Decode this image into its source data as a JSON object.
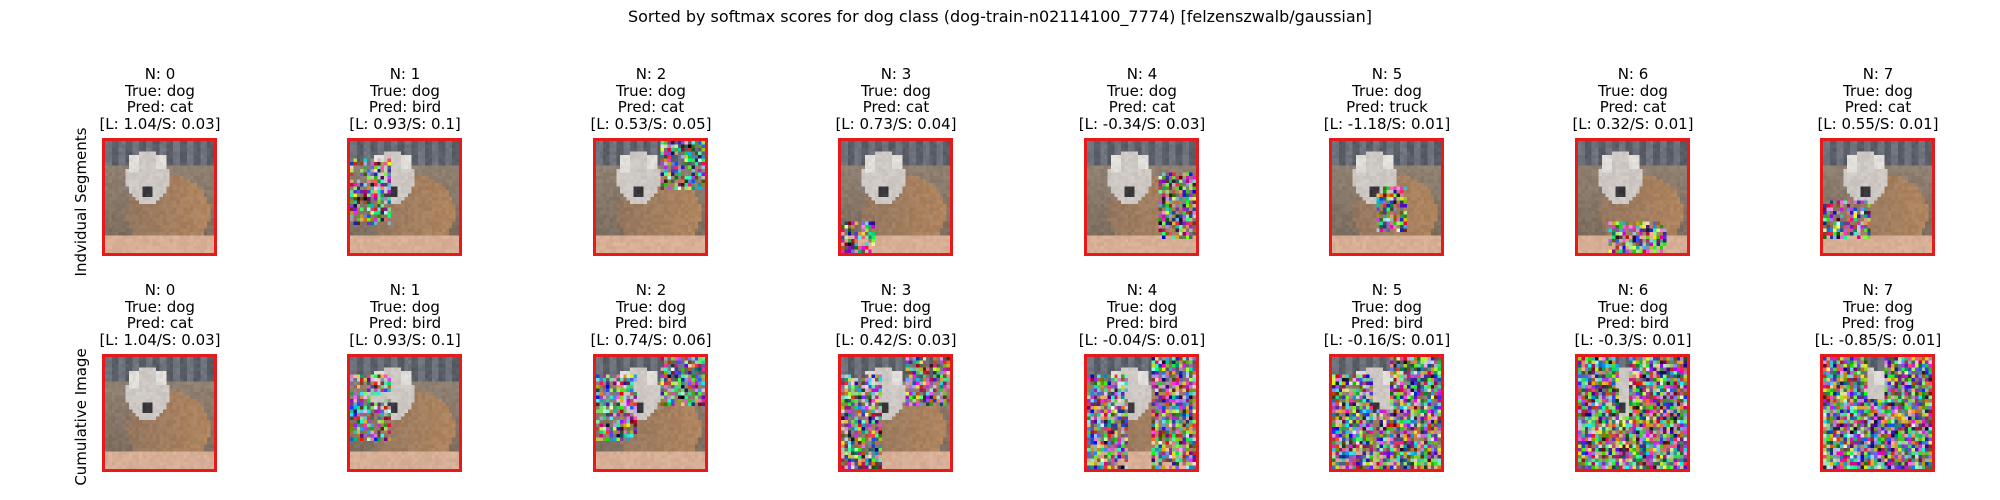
{
  "chart_data": {
    "type": "image-grid",
    "title": "Sorted by softmax scores for dog class (dog-train-n02114100_7774) [felzenszwalb/gaussian]",
    "rows": [
      {
        "label": "Indvidual Segments",
        "panels": [
          {
            "n": "N: 0",
            "true": "True: dog",
            "pred": "Pred: cat",
            "score": "[L: 1.04/S: 0.03]",
            "noise": 0.0,
            "region": "none"
          },
          {
            "n": "N: 1",
            "true": "True: dog",
            "pred": "Pred: bird",
            "score": "[L: 0.93/S: 0.1]",
            "noise": 0.35,
            "region": "left"
          },
          {
            "n": "N: 2",
            "true": "True: dog",
            "pred": "Pred: cat",
            "score": "[L: 0.53/S: 0.05]",
            "noise": 0.35,
            "region": "topright"
          },
          {
            "n": "N: 3",
            "true": "True: dog",
            "pred": "Pred: cat",
            "score": "[L: 0.73/S: 0.04]",
            "noise": 0.35,
            "region": "bottomleft"
          },
          {
            "n": "N: 4",
            "true": "True: dog",
            "pred": "Pred: cat",
            "score": "[L: -0.34/S: 0.03]",
            "noise": 0.45,
            "region": "right"
          },
          {
            "n": "N: 5",
            "true": "True: dog",
            "pred": "Pred: truck",
            "score": "[L: -1.18/S: 0.01]",
            "noise": 0.45,
            "region": "center"
          },
          {
            "n": "N: 6",
            "true": "True: dog",
            "pred": "Pred: cat",
            "score": "[L: 0.32/S: 0.01]",
            "noise": 0.4,
            "region": "bottom"
          },
          {
            "n": "N: 7",
            "true": "True: dog",
            "pred": "Pred: cat",
            "score": "[L: 0.55/S: 0.01]",
            "noise": 0.35,
            "region": "lowerleft"
          }
        ]
      },
      {
        "label": "Cumulative Image",
        "panels": [
          {
            "n": "N: 0",
            "true": "True: dog",
            "pred": "Pred: cat",
            "score": "[L: 1.04/S: 0.03]",
            "noise": 0.0,
            "region": "none"
          },
          {
            "n": "N: 1",
            "true": "True: dog",
            "pred": "Pred: bird",
            "score": "[L: 0.93/S: 0.1]",
            "noise": 0.35,
            "region": "c1"
          },
          {
            "n": "N: 2",
            "true": "True: dog",
            "pred": "Pred: bird",
            "score": "[L: 0.74/S: 0.06]",
            "noise": 0.4,
            "region": "c2"
          },
          {
            "n": "N: 3",
            "true": "True: dog",
            "pred": "Pred: bird",
            "score": "[L: 0.42/S: 0.03]",
            "noise": 0.45,
            "region": "c3"
          },
          {
            "n": "N: 4",
            "true": "True: dog",
            "pred": "Pred: bird",
            "score": "[L: -0.04/S: 0.01]",
            "noise": 0.5,
            "region": "c4"
          },
          {
            "n": "N: 5",
            "true": "True: dog",
            "pred": "Pred: bird",
            "score": "[L: -0.16/S: 0.01]",
            "noise": 0.55,
            "region": "c5"
          },
          {
            "n": "N: 6",
            "true": "True: dog",
            "pred": "Pred: bird",
            "score": "[L: -0.3/S: 0.01]",
            "noise": 0.6,
            "region": "c6"
          },
          {
            "n": "N: 7",
            "true": "True: dog",
            "pred": "Pred: frog",
            "score": "[L: -0.85/S: 0.01]",
            "noise": 0.65,
            "region": "c7"
          }
        ]
      }
    ],
    "frame_color": "#e8191b"
  }
}
